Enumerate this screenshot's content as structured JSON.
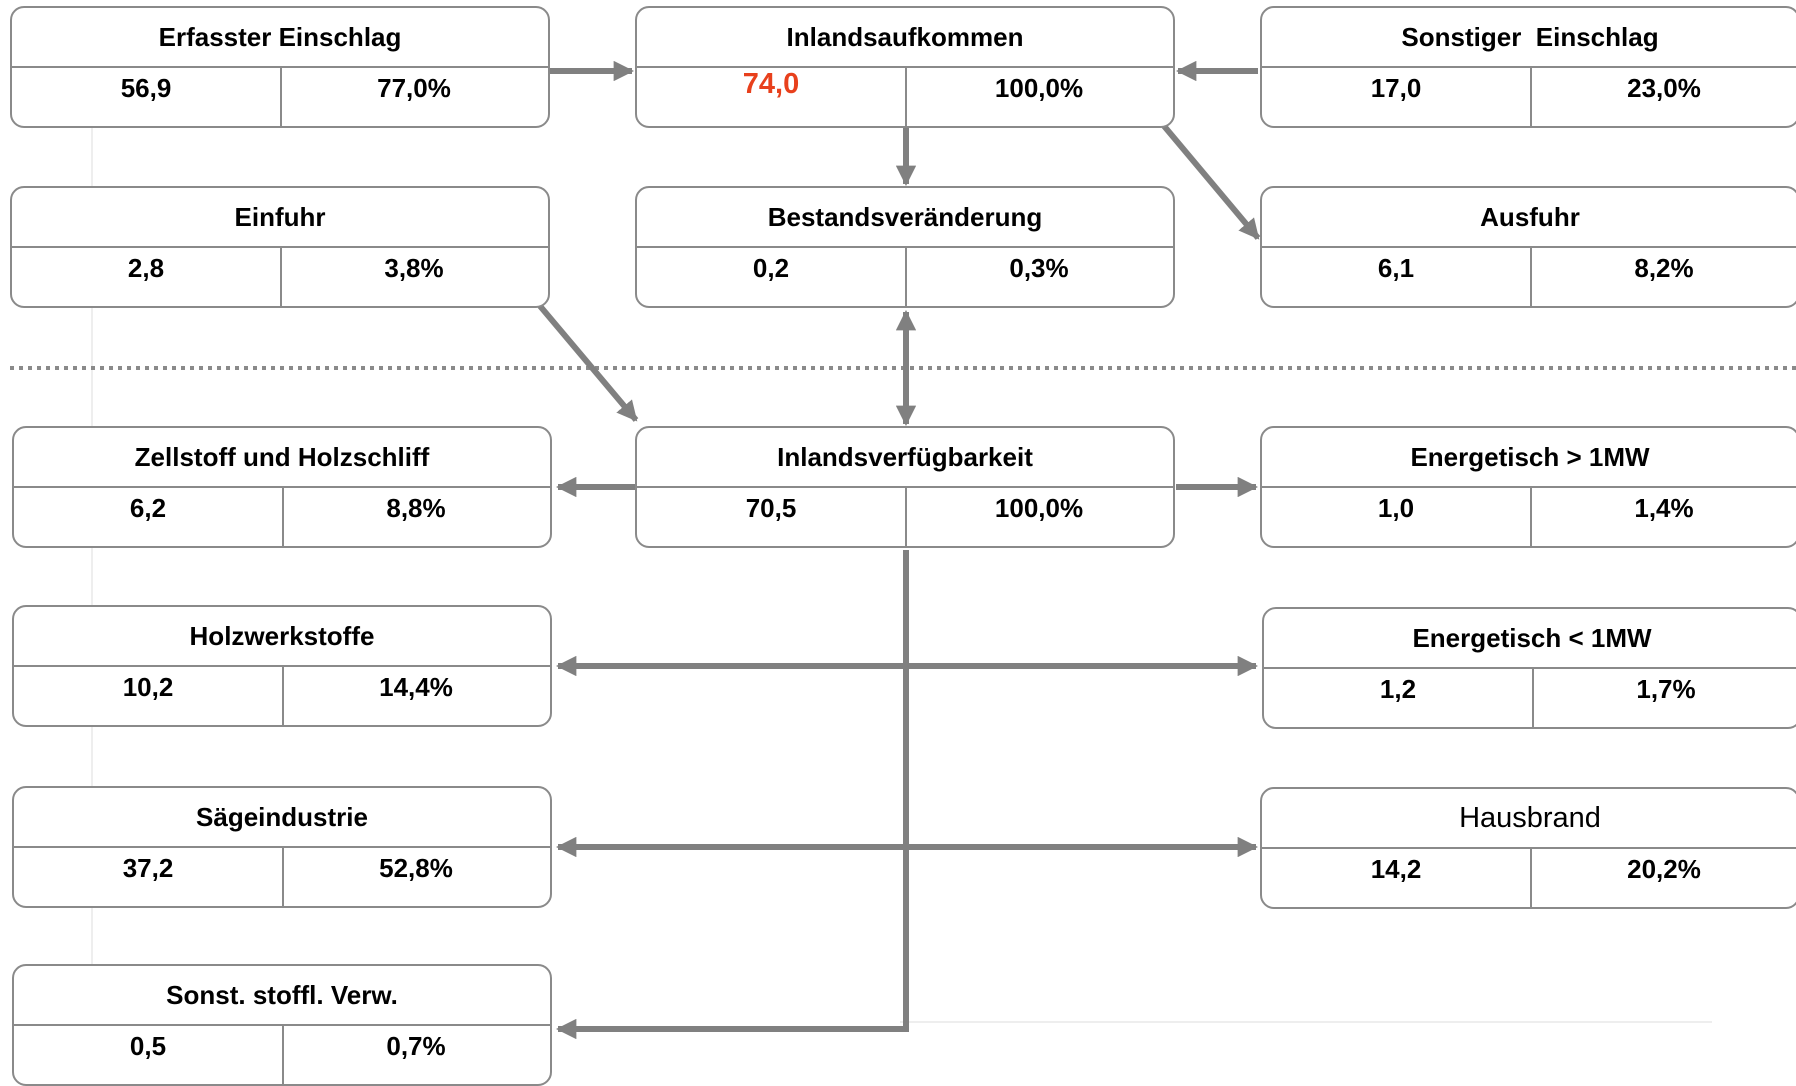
{
  "boxes": {
    "erfasster": {
      "title": "Erfasster Einschlag",
      "value": "56,9",
      "percent": "77,0%"
    },
    "inland": {
      "title": "Inlandsaufkommen",
      "value": "74,0",
      "percent": "100,0%"
    },
    "sonstiger": {
      "title": "Sonstiger  Einschlag",
      "value": "17,0",
      "percent": "23,0%"
    },
    "einfuhr": {
      "title": "Einfuhr",
      "value": "2,8",
      "percent": "3,8%"
    },
    "bestand": {
      "title": "Bestandsveränderung",
      "value": "0,2",
      "percent": "0,3%"
    },
    "ausfuhr": {
      "title": "Ausfuhr",
      "value": "6,1",
      "percent": "8,2%"
    },
    "zellstoff": {
      "title": "Zellstoff und Holzschliff",
      "value": "6,2",
      "percent": "8,8%"
    },
    "verfueg": {
      "title": "Inlandsverfügbarkeit",
      "value": "70,5",
      "percent": "100,0%"
    },
    "energie_gt": {
      "title": "Energetisch > 1MW",
      "value": "1,0",
      "percent": "1,4%"
    },
    "holzwerk": {
      "title": "Holzwerkstoffe",
      "value": "10,2",
      "percent": "14,4%"
    },
    "energie_lt": {
      "title": "Energetisch < 1MW",
      "value": "1,2",
      "percent": "1,7%"
    },
    "saege": {
      "title": "Sägeindustrie",
      "value": "37,2",
      "percent": "52,8%"
    },
    "hausbrand": {
      "title": "Hausbrand",
      "value": "14,2",
      "percent": "20,2%"
    },
    "sonst": {
      "title": "Sonst. stoffl. Verw.",
      "value": "0,5",
      "percent": "0,7%"
    }
  },
  "colors": {
    "border": "#8a8a8a",
    "arrow": "#808080",
    "highlight": "#e8401c"
  }
}
